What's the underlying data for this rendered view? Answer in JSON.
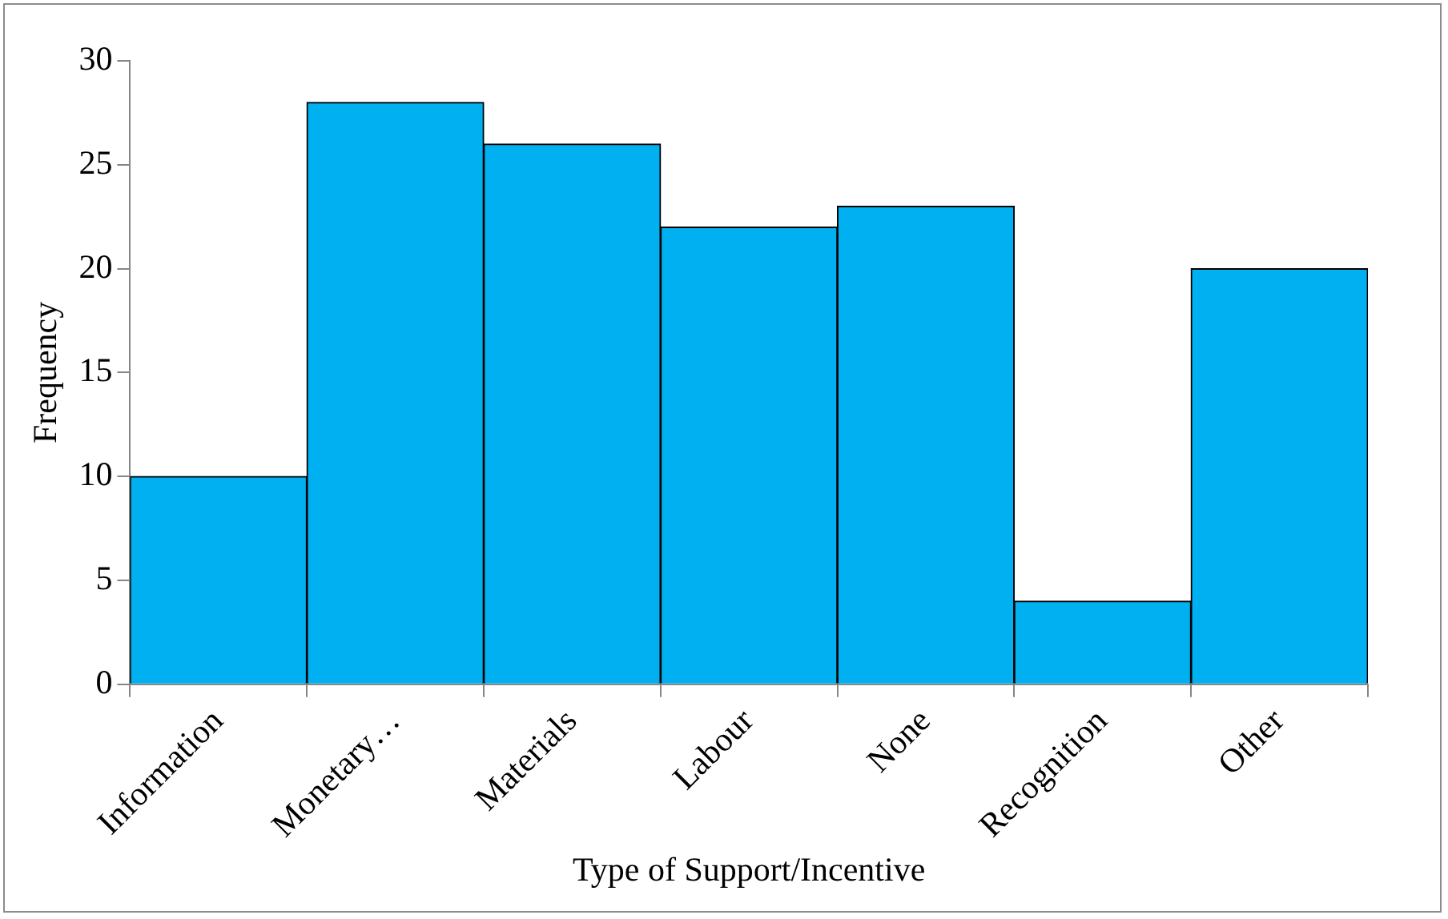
{
  "chart_data": {
    "type": "bar",
    "xlabel": "Type of Support/Incentive",
    "ylabel": "Frequency",
    "categories": [
      "Information",
      "Monetary…",
      "Materials",
      "Labour",
      "None",
      "Recognition",
      "Other"
    ],
    "values": [
      10,
      28,
      26,
      22,
      23,
      4,
      20
    ],
    "color": "#00b0f0",
    "ylim": [
      0,
      30
    ],
    "yticks": [
      0,
      5,
      10,
      15,
      20,
      25,
      30
    ],
    "grid": false,
    "legend": false
  }
}
